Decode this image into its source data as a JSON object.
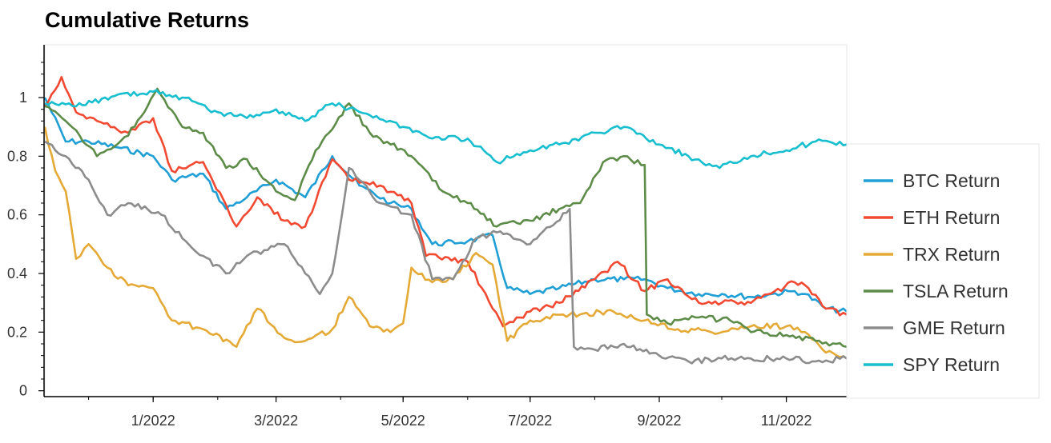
{
  "chart_data": {
    "type": "line",
    "title": "Cumulative Returns",
    "xlabel": "",
    "ylabel": "",
    "x_ticks": [
      "1/2022",
      "3/2022",
      "5/2022",
      "7/2022",
      "9/2022",
      "11/2022"
    ],
    "y_ticks": [
      "0",
      "0.2",
      "0.4",
      "0.6",
      "0.8",
      "1"
    ],
    "xlim": [
      "2021-11-10",
      "2022-11-30"
    ],
    "ylim": [
      -0.02,
      1.18
    ],
    "grid": false,
    "legend_position": "right",
    "series": [
      {
        "name": "BTC Return",
        "color": "#1f9fd6",
        "x": [
          "2021-11-10",
          "2021-11-20",
          "2021-12-01",
          "2021-12-15",
          "2022-01-01",
          "2022-01-10",
          "2022-01-25",
          "2022-02-05",
          "2022-02-15",
          "2022-03-01",
          "2022-03-15",
          "2022-03-28",
          "2022-04-10",
          "2022-04-25",
          "2022-05-05",
          "2022-05-15",
          "2022-06-01",
          "2022-06-13",
          "2022-06-20",
          "2022-07-01",
          "2022-07-15",
          "2022-08-01",
          "2022-08-15",
          "2022-08-25",
          "2022-09-05",
          "2022-09-20",
          "2022-10-01",
          "2022-10-15",
          "2022-10-25",
          "2022-11-05",
          "2022-11-10",
          "2022-11-20",
          "2022-11-30"
        ],
        "values": [
          1.0,
          0.85,
          0.85,
          0.83,
          0.8,
          0.72,
          0.74,
          0.62,
          0.66,
          0.72,
          0.66,
          0.8,
          0.7,
          0.64,
          0.62,
          0.5,
          0.51,
          0.53,
          0.35,
          0.33,
          0.35,
          0.38,
          0.38,
          0.38,
          0.35,
          0.33,
          0.33,
          0.32,
          0.33,
          0.34,
          0.33,
          0.28,
          0.27
        ]
      },
      {
        "name": "ETH Return",
        "color": "#f24a32",
        "x": [
          "2021-11-10",
          "2021-11-18",
          "2021-11-25",
          "2021-12-05",
          "2021-12-20",
          "2022-01-01",
          "2022-01-10",
          "2022-01-25",
          "2022-02-10",
          "2022-02-20",
          "2022-03-05",
          "2022-03-15",
          "2022-03-28",
          "2022-04-05",
          "2022-04-20",
          "2022-05-05",
          "2022-05-12",
          "2022-06-01",
          "2022-06-13",
          "2022-06-18",
          "2022-07-01",
          "2022-07-15",
          "2022-08-01",
          "2022-08-12",
          "2022-08-25",
          "2022-09-05",
          "2022-09-20",
          "2022-10-01",
          "2022-10-15",
          "2022-11-05",
          "2022-11-10",
          "2022-11-20",
          "2022-11-30"
        ],
        "values": [
          0.97,
          1.07,
          0.95,
          0.92,
          0.88,
          0.93,
          0.75,
          0.78,
          0.56,
          0.66,
          0.58,
          0.56,
          0.79,
          0.72,
          0.7,
          0.64,
          0.46,
          0.44,
          0.28,
          0.22,
          0.27,
          0.3,
          0.38,
          0.44,
          0.34,
          0.38,
          0.3,
          0.3,
          0.3,
          0.37,
          0.36,
          0.28,
          0.26
        ]
      },
      {
        "name": "TRX Return",
        "color": "#e5a935",
        "x": [
          "2021-11-10",
          "2021-11-15",
          "2021-11-20",
          "2021-11-25",
          "2021-12-01",
          "2021-12-10",
          "2021-12-20",
          "2022-01-01",
          "2022-01-10",
          "2022-01-25",
          "2022-02-10",
          "2022-02-20",
          "2022-03-05",
          "2022-03-15",
          "2022-03-28",
          "2022-04-05",
          "2022-04-15",
          "2022-04-25",
          "2022-05-01",
          "2022-05-05",
          "2022-05-15",
          "2022-05-25",
          "2022-06-05",
          "2022-06-13",
          "2022-06-20",
          "2022-07-01",
          "2022-07-20",
          "2022-08-10",
          "2022-08-25",
          "2022-09-10",
          "2022-10-01",
          "2022-10-15",
          "2022-11-01",
          "2022-11-10",
          "2022-11-20",
          "2022-11-30"
        ],
        "values": [
          0.9,
          0.75,
          0.68,
          0.45,
          0.5,
          0.42,
          0.36,
          0.35,
          0.24,
          0.21,
          0.15,
          0.28,
          0.18,
          0.17,
          0.21,
          0.32,
          0.22,
          0.2,
          0.23,
          0.42,
          0.37,
          0.38,
          0.47,
          0.43,
          0.17,
          0.24,
          0.26,
          0.27,
          0.24,
          0.21,
          0.2,
          0.22,
          0.22,
          0.2,
          0.13,
          0.11
        ]
      },
      {
        "name": "TSLA Return",
        "color": "#5d8c48",
        "x": [
          "2021-11-10",
          "2021-11-20",
          "2021-12-05",
          "2021-12-20",
          "2022-01-03",
          "2022-01-15",
          "2022-01-25",
          "2022-02-05",
          "2022-02-15",
          "2022-03-01",
          "2022-03-10",
          "2022-03-20",
          "2022-04-05",
          "2022-04-15",
          "2022-04-25",
          "2022-05-05",
          "2022-05-20",
          "2022-06-01",
          "2022-06-15",
          "2022-07-01",
          "2022-07-15",
          "2022-07-25",
          "2022-08-05",
          "2022-08-15",
          "2022-08-25",
          "2022-08-26",
          "2022-09-05",
          "2022-09-20",
          "2022-10-05",
          "2022-10-15",
          "2022-11-01",
          "2022-11-15",
          "2022-11-30"
        ],
        "values": [
          0.97,
          0.92,
          0.8,
          0.87,
          1.03,
          0.9,
          0.88,
          0.76,
          0.79,
          0.68,
          0.65,
          0.82,
          0.98,
          0.88,
          0.84,
          0.8,
          0.68,
          0.64,
          0.56,
          0.58,
          0.62,
          0.64,
          0.78,
          0.8,
          0.77,
          0.26,
          0.23,
          0.25,
          0.24,
          0.2,
          0.19,
          0.17,
          0.15
        ]
      },
      {
        "name": "GME Return",
        "color": "#8c8c8c",
        "x": [
          "2021-11-10",
          "2021-11-20",
          "2021-12-01",
          "2021-12-10",
          "2021-12-20",
          "2022-01-05",
          "2022-01-15",
          "2022-01-25",
          "2022-02-05",
          "2022-02-15",
          "2022-02-25",
          "2022-03-05",
          "2022-03-15",
          "2022-03-22",
          "2022-03-28",
          "2022-04-05",
          "2022-04-20",
          "2022-05-05",
          "2022-05-15",
          "2022-05-25",
          "2022-06-05",
          "2022-06-15",
          "2022-07-01",
          "2022-07-20",
          "2022-07-22",
          "2022-08-01",
          "2022-08-15",
          "2022-09-01",
          "2022-09-15",
          "2022-10-01",
          "2022-10-15",
          "2022-11-01",
          "2022-11-15",
          "2022-11-30"
        ],
        "values": [
          0.85,
          0.8,
          0.72,
          0.6,
          0.64,
          0.6,
          0.52,
          0.46,
          0.4,
          0.46,
          0.48,
          0.5,
          0.4,
          0.33,
          0.4,
          0.76,
          0.64,
          0.6,
          0.38,
          0.38,
          0.52,
          0.54,
          0.5,
          0.62,
          0.15,
          0.14,
          0.16,
          0.12,
          0.1,
          0.11,
          0.11,
          0.11,
          0.1,
          0.11
        ]
      },
      {
        "name": "SPY Return",
        "color": "#17becf",
        "x": [
          "2021-11-10",
          "2021-11-25",
          "2021-12-15",
          "2022-01-01",
          "2022-01-15",
          "2022-02-01",
          "2022-02-15",
          "2022-03-01",
          "2022-03-15",
          "2022-03-28",
          "2022-04-15",
          "2022-05-01",
          "2022-05-15",
          "2022-06-01",
          "2022-06-15",
          "2022-07-01",
          "2022-07-15",
          "2022-08-01",
          "2022-08-15",
          "2022-09-01",
          "2022-09-15",
          "2022-09-30",
          "2022-10-15",
          "2022-11-01",
          "2022-11-15",
          "2022-11-30"
        ],
        "values": [
          0.98,
          0.97,
          1.01,
          1.02,
          1.0,
          0.95,
          0.93,
          0.96,
          0.92,
          0.98,
          0.94,
          0.9,
          0.86,
          0.86,
          0.78,
          0.82,
          0.84,
          0.88,
          0.9,
          0.84,
          0.8,
          0.76,
          0.8,
          0.82,
          0.85,
          0.84
        ]
      }
    ]
  }
}
